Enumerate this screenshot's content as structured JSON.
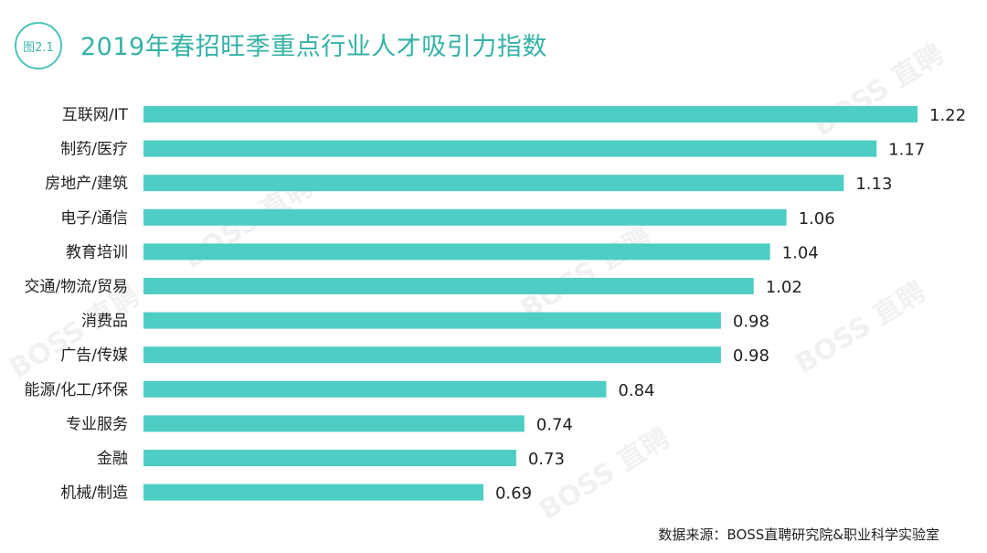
{
  "header": {
    "badge": "图2.1",
    "title": "2019年春招旺季重点行业人才吸引力指数"
  },
  "footer": {
    "source": "数据来源：BOSS直聘研究院&职业科学实验室"
  },
  "watermark": {
    "text": "BOSS 直聘"
  },
  "colors": {
    "bar": "#4ecdc4",
    "accent": "#35b2a7"
  },
  "chart_data": {
    "type": "bar",
    "orientation": "horizontal",
    "categories": [
      "互联网/IT",
      "制药/医疗",
      "房地产/建筑",
      "电子/通信",
      "教育培训",
      "交通/物流/贸易",
      "消费品",
      "广告/传媒",
      "能源/化工/环保",
      "专业服务",
      "金融",
      "机械/制造"
    ],
    "values": [
      1.22,
      1.17,
      1.13,
      1.06,
      1.04,
      1.02,
      0.98,
      0.98,
      0.84,
      0.74,
      0.73,
      0.69
    ],
    "value_labels": [
      "1.22",
      "1.17",
      "1.13",
      "1.06",
      "1.04",
      "1.02",
      "0.98",
      "0.98",
      "0.84",
      "0.74",
      "0.73",
      "0.69"
    ],
    "xlim": [
      0.275,
      1.22
    ],
    "grid": false,
    "legend": "none"
  }
}
